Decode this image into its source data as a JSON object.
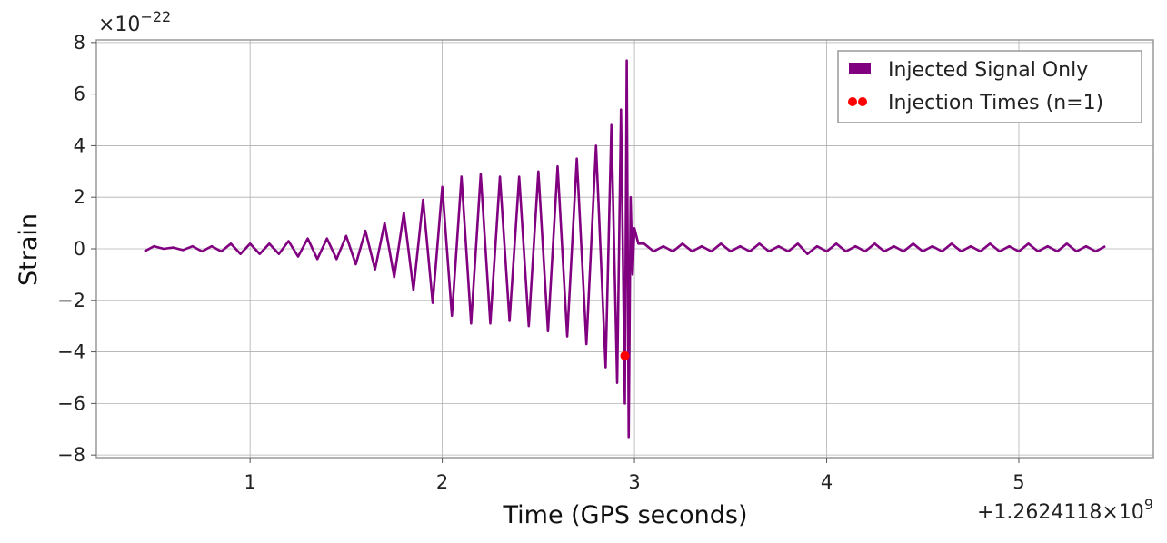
{
  "chart_data": {
    "type": "line",
    "title": "",
    "xlabel": "Time (GPS seconds)",
    "ylabel": "Strain",
    "x_offset_label": "+1.2624118 × 10^9",
    "x_offset_parts": {
      "prefix": "+1.2624118×10",
      "exp": "9"
    },
    "y_scale_parts": {
      "prefix": "×10",
      "exp": "−22"
    },
    "xlim": [
      0.2,
      5.7
    ],
    "ylim": [
      -8.1,
      8.1
    ],
    "xticks": [
      {
        "value": 1,
        "label": "1"
      },
      {
        "value": 2,
        "label": "2"
      },
      {
        "value": 3,
        "label": "3"
      },
      {
        "value": 4,
        "label": "4"
      },
      {
        "value": 5,
        "label": "5"
      }
    ],
    "yticks": [
      {
        "value": 8,
        "label": "8"
      },
      {
        "value": 6,
        "label": "6"
      },
      {
        "value": 4,
        "label": "4"
      },
      {
        "value": 2,
        "label": "2"
      },
      {
        "value": 0,
        "label": "0"
      },
      {
        "value": -2,
        "label": "−2"
      },
      {
        "value": -4,
        "label": "−4"
      },
      {
        "value": -6,
        "label": "−6"
      },
      {
        "value": -8,
        "label": "−8"
      }
    ],
    "grid": true,
    "legend_position": "top-right",
    "series": [
      {
        "name": "Injected Signal Only",
        "color": "#800080",
        "kind": "line",
        "x": [
          0.45,
          0.5,
          0.55,
          0.6,
          0.65,
          0.7,
          0.75,
          0.8,
          0.85,
          0.9,
          0.95,
          1.0,
          1.05,
          1.1,
          1.15,
          1.2,
          1.25,
          1.3,
          1.35,
          1.4,
          1.45,
          1.5,
          1.55,
          1.6,
          1.65,
          1.7,
          1.75,
          1.8,
          1.85,
          1.9,
          1.95,
          2.0,
          2.05,
          2.1,
          2.15,
          2.2,
          2.25,
          2.3,
          2.35,
          2.4,
          2.45,
          2.5,
          2.55,
          2.6,
          2.65,
          2.7,
          2.75,
          2.8,
          2.85,
          2.88,
          2.91,
          2.93,
          2.95,
          2.96,
          2.97,
          2.98,
          2.99,
          3.0,
          3.02,
          3.05,
          3.1,
          3.15,
          3.2,
          3.25,
          3.3,
          3.35,
          3.4,
          3.45,
          3.5,
          3.55,
          3.6,
          3.65,
          3.7,
          3.75,
          3.8,
          3.85,
          3.9,
          3.95,
          4.0,
          4.05,
          4.1,
          4.15,
          4.2,
          4.25,
          4.3,
          4.35,
          4.4,
          4.45,
          4.5,
          4.55,
          4.6,
          4.65,
          4.7,
          4.75,
          4.8,
          4.85,
          4.9,
          4.95,
          5.0,
          5.05,
          5.1,
          5.15,
          5.2,
          5.25,
          5.3,
          5.35,
          5.4,
          5.45
        ],
        "y": [
          -0.1,
          0.1,
          0.0,
          0.05,
          -0.05,
          0.1,
          -0.1,
          0.1,
          -0.1,
          0.2,
          -0.2,
          0.2,
          -0.2,
          0.2,
          -0.2,
          0.3,
          -0.3,
          0.4,
          -0.4,
          0.4,
          -0.4,
          0.5,
          -0.6,
          0.7,
          -0.8,
          1.0,
          -1.1,
          1.4,
          -1.6,
          1.9,
          -2.1,
          2.4,
          -2.6,
          2.8,
          -2.9,
          2.9,
          -2.9,
          2.8,
          -2.8,
          2.8,
          -3.0,
          3.0,
          -3.2,
          3.2,
          -3.4,
          3.5,
          -3.7,
          4.0,
          -4.6,
          4.8,
          -5.2,
          5.4,
          -6.0,
          7.3,
          -7.3,
          2.0,
          -1.0,
          0.8,
          0.2,
          0.2,
          -0.1,
          0.1,
          -0.1,
          0.2,
          -0.1,
          0.1,
          -0.1,
          0.2,
          -0.1,
          0.1,
          -0.1,
          0.2,
          -0.1,
          0.1,
          -0.1,
          0.2,
          -0.2,
          0.1,
          -0.1,
          0.2,
          -0.1,
          0.1,
          -0.1,
          0.2,
          -0.1,
          0.1,
          -0.1,
          0.2,
          -0.1,
          0.1,
          -0.1,
          0.2,
          -0.1,
          0.1,
          -0.1,
          0.2,
          -0.1,
          0.1,
          -0.1,
          0.2,
          -0.1,
          0.1,
          -0.1,
          0.2,
          -0.1,
          0.1,
          -0.1,
          0.1
        ]
      },
      {
        "name": "Injection Times (n=1)",
        "color": "#ff0000",
        "kind": "scatter",
        "x": [
          2.95
        ],
        "y": [
          -4.15
        ]
      }
    ]
  }
}
